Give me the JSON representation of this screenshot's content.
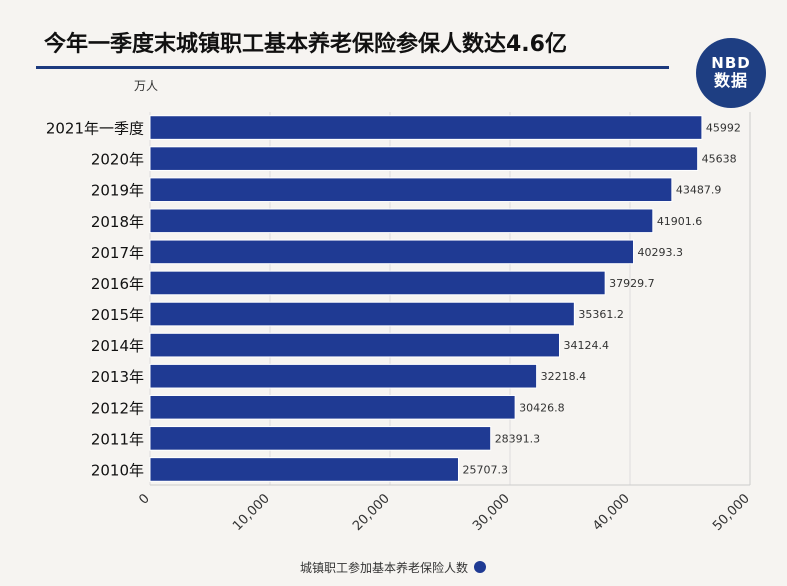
{
  "header": {
    "title": "今年一季度末城镇职工基本养老保险参保人数达4.6亿",
    "logo_line1": "NBD",
    "logo_line2": "数据"
  },
  "colors": {
    "bar": "#1f3a93",
    "bar_edge": "#ffffff",
    "title_rule": "#1c3a7e",
    "logo_bg": "#1e3e82",
    "background": "#f6f4f1"
  },
  "chart_data": {
    "type": "bar",
    "orientation": "horizontal",
    "title": "今年一季度末城镇职工基本养老保险参保人数达4.6亿",
    "xlabel": "",
    "ylabel": "万人",
    "xlim": [
      0,
      50000
    ],
    "x_ticks": [
      "0",
      "10,000",
      "20,000",
      "30,000",
      "40,000",
      "50,000"
    ],
    "x_tick_values": [
      0,
      10000,
      20000,
      30000,
      40000,
      50000
    ],
    "grid": true,
    "legend_position": "bottom-center",
    "categories": [
      "2021年一季度",
      "2020年",
      "2019年",
      "2018年",
      "2017年",
      "2016年",
      "2015年",
      "2014年",
      "2013年",
      "2012年",
      "2011年",
      "2010年"
    ],
    "series": [
      {
        "name": "城镇职工参加基本养老保险人数",
        "values": [
          45992,
          45638,
          43487.9,
          41901.6,
          40293.3,
          37929.7,
          35361.2,
          34124.4,
          32218.4,
          30426.8,
          28391.3,
          25707.3
        ],
        "value_labels": [
          "45992",
          "45638",
          "43487.9",
          "41901.6",
          "40293.3",
          "37929.7",
          "35361.2",
          "34124.4",
          "32218.4",
          "30426.8",
          "28391.3",
          "25707.3"
        ]
      }
    ]
  }
}
